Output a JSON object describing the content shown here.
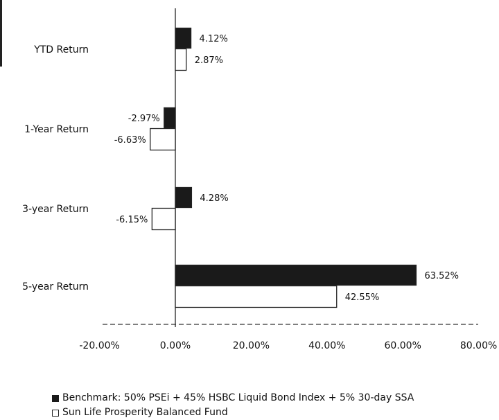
{
  "chart_data": {
    "type": "bar",
    "orientation": "horizontal",
    "categories": [
      "YTD Return",
      "1-Year Return",
      "3-year Return",
      "5-year Return"
    ],
    "series": [
      {
        "name": "Benchmark: 50% PSEi + 45% HSBC Liquid Bond Index + 5% 30-day SSA",
        "color": "#1a1a1a",
        "values": [
          4.12,
          -2.97,
          4.28,
          63.52
        ],
        "labels": [
          "4.12%",
          "-2.97%",
          "4.28%",
          "63.52%"
        ]
      },
      {
        "name": "Sun Life Prosperity Balanced Fund",
        "color": "#ffffff",
        "values": [
          2.87,
          -6.63,
          -6.15,
          42.55
        ],
        "labels": [
          "2.87%",
          "-6.63%",
          "-6.15%",
          "42.55%"
        ]
      }
    ],
    "xlim": [
      -20,
      80
    ],
    "xticks": [
      -20,
      0,
      20,
      40,
      60,
      80
    ],
    "xtick_labels": [
      "-20.00%",
      "0.00%",
      "20.00%",
      "40.00%",
      "60.00%",
      "80.00%"
    ],
    "grid": false,
    "legend_position": "bottom"
  }
}
